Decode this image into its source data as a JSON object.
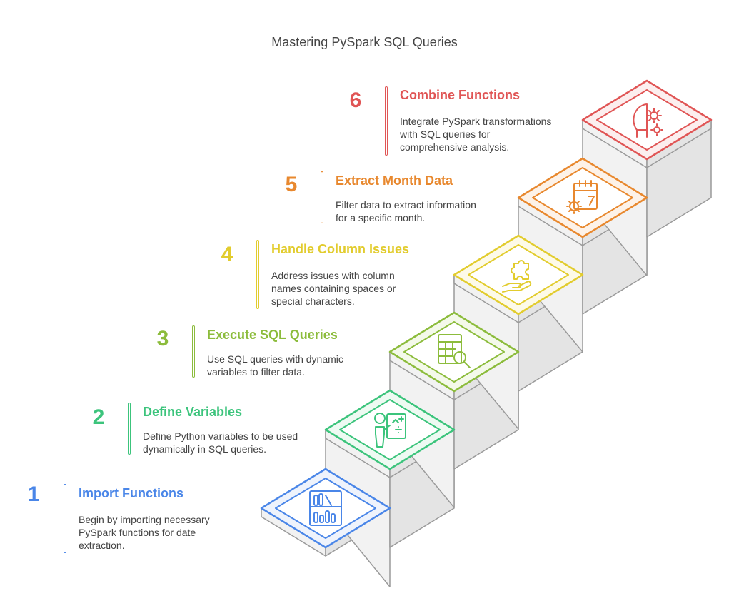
{
  "title": "Mastering PySpark SQL Queries",
  "steps": [
    {
      "num": "1",
      "title": "Import Functions",
      "desc": [
        "Begin by importing necessary",
        "PySpark functions for date",
        "extraction."
      ],
      "color": "#4a86e8",
      "light": "#eef3fc",
      "icon": "library-chart-icon"
    },
    {
      "num": "2",
      "title": "Define Variables",
      "desc": [
        "Define Python variables to be used",
        "dynamically in SQL queries."
      ],
      "color": "#3cc47c",
      "light": "#eefaf2",
      "icon": "person-math-board-icon"
    },
    {
      "num": "3",
      "title": "Execute SQL Queries",
      "desc": [
        "Use SQL queries with dynamic",
        "variables to filter data."
      ],
      "color": "#8cbc3c",
      "light": "#f4f9ea",
      "icon": "table-search-icon"
    },
    {
      "num": "4",
      "title": "Handle Column Issues",
      "desc": [
        "Address issues with column",
        "names containing spaces or",
        "special characters."
      ],
      "color": "#e2cc2e",
      "light": "#fdfae8",
      "icon": "hand-puzzle-icon"
    },
    {
      "num": "5",
      "title": "Extract Month Data",
      "desc": [
        "Filter data to extract information",
        "for a specific month."
      ],
      "color": "#e8882e",
      "light": "#fdf2e8",
      "icon": "calendar-gear-icon"
    },
    {
      "num": "6",
      "title": "Combine Functions",
      "desc": [
        "Integrate PySpark transformations",
        "with SQL queries for",
        "comprehensive analysis."
      ],
      "color": "#e05555",
      "light": "#fceeee",
      "icon": "head-gear-icon"
    }
  ]
}
